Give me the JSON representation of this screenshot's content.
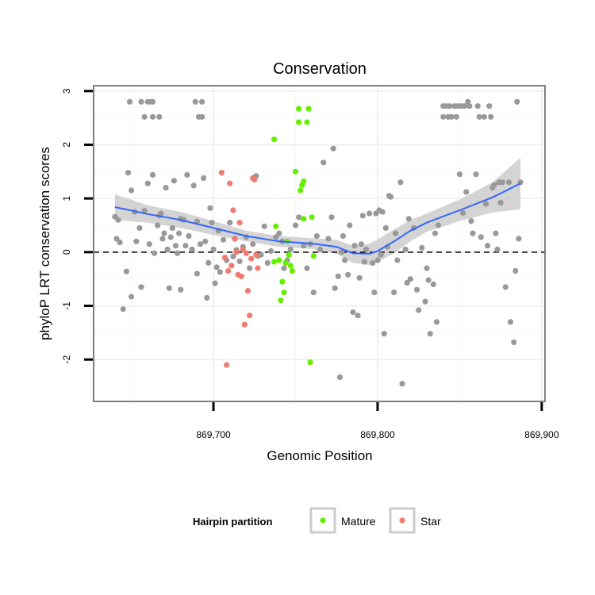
{
  "chart_data": {
    "type": "scatter",
    "title": "Conservation",
    "xlabel": "Genomic Position",
    "ylabel": "phyloP LRT conservation scores",
    "xlim": [
      869627,
      869902
    ],
    "ylim": [
      -2.78,
      3.1
    ],
    "x_ticks": [
      869700,
      869800,
      869900
    ],
    "x_tick_labels": [
      "869,700",
      "869,800",
      "869,900"
    ],
    "y_ticks": [
      -2,
      -1,
      0,
      1,
      2,
      3
    ],
    "y_tick_labels": [
      "-2",
      "-1",
      "0",
      "1",
      "2",
      "3"
    ],
    "reference_line": {
      "y": 0,
      "style": "dashed"
    },
    "grid": true,
    "legend": {
      "title": "Hairpin partition",
      "position": "bottom",
      "entries": [
        {
          "label": "Mature",
          "color": "#66ee00"
        },
        {
          "label": "Star",
          "color": "#f07b70"
        }
      ]
    },
    "colors": {
      "other": "#999999",
      "mature": "#66ee00",
      "star": "#f07b70",
      "smooth": "#3366ff",
      "band": "#cccccc"
    },
    "smooth": {
      "x": [
        869640,
        869660,
        869680,
        869700,
        869720,
        869740,
        869760,
        869775,
        869785,
        869795,
        869800,
        869810,
        869820,
        869830,
        869850,
        869870,
        869887
      ],
      "y": [
        0.84,
        0.71,
        0.6,
        0.45,
        0.3,
        0.2,
        0.16,
        0.1,
        -0.02,
        -0.03,
        0.02,
        0.2,
        0.4,
        0.55,
        0.78,
        1.02,
        1.28
      ],
      "lower": [
        0.6,
        0.55,
        0.45,
        0.32,
        0.2,
        0.1,
        0.06,
        -0.03,
        -0.2,
        -0.24,
        -0.18,
        -0.02,
        0.2,
        0.38,
        0.58,
        0.74,
        0.8
      ],
      "upper": [
        1.08,
        0.87,
        0.75,
        0.58,
        0.4,
        0.3,
        0.26,
        0.23,
        0.12,
        0.16,
        0.24,
        0.42,
        0.6,
        0.72,
        0.98,
        1.3,
        1.76
      ]
    },
    "series": [
      {
        "name": "Other",
        "points": [
          [
            869649,
            2.8
          ],
          [
            869656,
            2.8
          ],
          [
            869658,
            2.52
          ],
          [
            869660,
            2.8
          ],
          [
            869662,
            2.8
          ],
          [
            869663,
            2.52
          ],
          [
            869663,
            2.8
          ],
          [
            869667,
            2.52
          ],
          [
            869689,
            2.8
          ],
          [
            869691,
            2.52
          ],
          [
            869693,
            2.8
          ],
          [
            869693,
            2.52
          ],
          [
            869640,
            0.66
          ],
          [
            869641,
            0.25
          ],
          [
            869642,
            0.6
          ],
          [
            869643,
            0.18
          ],
          [
            869645,
            -1.06
          ],
          [
            869647,
            -0.36
          ],
          [
            869650,
            -0.83
          ],
          [
            869648,
            1.48
          ],
          [
            869650,
            1.15
          ],
          [
            869652,
            0.75
          ],
          [
            869653,
            0.2
          ],
          [
            869655,
            0.45
          ],
          [
            869656,
            -0.65
          ],
          [
            869658,
            0.77
          ],
          [
            869660,
            1.28
          ],
          [
            869661,
            0.15
          ],
          [
            869663,
            1.44
          ],
          [
            869664,
            -0.02
          ],
          [
            869666,
            0.5
          ],
          [
            869667,
            0.68
          ],
          [
            869668,
            0.72
          ],
          [
            869669,
            0.25
          ],
          [
            869670,
            0.35
          ],
          [
            869671,
            1.2
          ],
          [
            869672,
            0.05
          ],
          [
            869673,
            -0.67
          ],
          [
            869674,
            0.28
          ],
          [
            869675,
            0.45
          ],
          [
            869676,
            1.33
          ],
          [
            869677,
            0.12
          ],
          [
            869678,
            -0.02
          ],
          [
            869679,
            0.35
          ],
          [
            869680,
            -0.7
          ],
          [
            869680,
            0.62
          ],
          [
            869682,
            0.6
          ],
          [
            869683,
            0.12
          ],
          [
            869684,
            1.44
          ],
          [
            869685,
            0.3
          ],
          [
            869687,
            0.05
          ],
          [
            869688,
            1.24
          ],
          [
            869690,
            -0.4
          ],
          [
            869690,
            0.57
          ],
          [
            869692,
            0.15
          ],
          [
            869694,
            1.38
          ],
          [
            869695,
            0.2
          ],
          [
            869696,
            -0.85
          ],
          [
            869697,
            -0.2
          ],
          [
            869698,
            0.82
          ],
          [
            869699,
            0.55
          ],
          [
            869700,
            0.05
          ],
          [
            869701,
            -0.58
          ],
          [
            869702,
            -0.28
          ],
          [
            869703,
            0.4
          ],
          [
            869704,
            -0.37
          ],
          [
            869706,
            0.23
          ],
          [
            869708,
            -0.15
          ],
          [
            869710,
            0.55
          ],
          [
            869712,
            -0.08
          ],
          [
            869714,
            0.04
          ],
          [
            869716,
            -0.17
          ],
          [
            869718,
            0.1
          ],
          [
            869720,
            0.28
          ],
          [
            869722,
            -0.3
          ],
          [
            869724,
            0.15
          ],
          [
            869726,
            1.42
          ],
          [
            869727,
            -0.07
          ],
          [
            869729,
            -0.05
          ],
          [
            869731,
            0.48
          ],
          [
            869733,
            -0.2
          ],
          [
            869735,
            0.02
          ],
          [
            869738,
            0.28
          ],
          [
            869740,
            0.35
          ],
          [
            869742,
            0.2
          ],
          [
            869743,
            -0.3
          ],
          [
            869745,
            -0.15
          ],
          [
            869747,
            0.05
          ],
          [
            869750,
            0.5
          ],
          [
            869752,
            0.65
          ],
          [
            869755,
            0.12
          ],
          [
            869757,
            -0.3
          ],
          [
            869759,
            0.15
          ],
          [
            869761,
            -0.75
          ],
          [
            869763,
            0.3
          ],
          [
            869765,
            0.05
          ],
          [
            869767,
            1.67
          ],
          [
            869770,
            0.25
          ],
          [
            869772,
            0.65
          ],
          [
            869773,
            1.93
          ],
          [
            869774,
            -0.67
          ],
          [
            869776,
            -0.45
          ],
          [
            869777,
            -2.33
          ],
          [
            869778,
            0.0
          ],
          [
            869779,
            0.3
          ],
          [
            869780,
            -0.15
          ],
          [
            869782,
            -0.42
          ],
          [
            869783,
            0.5
          ],
          [
            869785,
            -1.12
          ],
          [
            869786,
            0.12
          ],
          [
            869788,
            -1.18
          ],
          [
            869789,
            -0.48
          ],
          [
            869790,
            0.15
          ],
          [
            869791,
            0.68
          ],
          [
            869792,
            -0.18
          ],
          [
            869793,
            0.05
          ],
          [
            869795,
            0.72
          ],
          [
            869797,
            -0.2
          ],
          [
            869798,
            -0.75
          ],
          [
            869799,
            0.72
          ],
          [
            869800,
            -0.15
          ],
          [
            869801,
            0.78
          ],
          [
            869802,
            -0.05
          ],
          [
            869803,
            0.75
          ],
          [
            869804,
            -1.52
          ],
          [
            869805,
            0.45
          ],
          [
            869806,
            0.1
          ],
          [
            869807,
            1.05
          ],
          [
            869808,
            1.03
          ],
          [
            869810,
            -0.75
          ],
          [
            869811,
            0.35
          ],
          [
            869812,
            -0.15
          ],
          [
            869814,
            1.3
          ],
          [
            869815,
            -2.45
          ],
          [
            869817,
            0.05
          ],
          [
            869818,
            -0.57
          ],
          [
            869819,
            0.62
          ],
          [
            869820,
            -0.5
          ],
          [
            869822,
            0.45
          ],
          [
            869824,
            -0.7
          ],
          [
            869825,
            -1.08
          ],
          [
            869827,
            0.08
          ],
          [
            869829,
            -0.92
          ],
          [
            869830,
            -0.3
          ],
          [
            869831,
            -0.52
          ],
          [
            869832,
            -1.52
          ],
          [
            869834,
            -0.6
          ],
          [
            869835,
            0.35
          ],
          [
            869836,
            -1.3
          ],
          [
            869837,
            0.5
          ],
          [
            869840,
            2.52
          ],
          [
            869840,
            2.72
          ],
          [
            869842,
            2.72
          ],
          [
            869843,
            2.52
          ],
          [
            869844,
            2.72
          ],
          [
            869845,
            2.52
          ],
          [
            869847,
            2.72
          ],
          [
            869848,
            2.52
          ],
          [
            869849,
            2.72
          ],
          [
            869850,
            1.45
          ],
          [
            869851,
            2.72
          ],
          [
            869852,
            0.73
          ],
          [
            869853,
            2.72
          ],
          [
            869854,
            1.12
          ],
          [
            869855,
            2.8
          ],
          [
            869856,
            2.72
          ],
          [
            869857,
            0.58
          ],
          [
            869858,
            0.35
          ],
          [
            869860,
            1.45
          ],
          [
            869861,
            2.72
          ],
          [
            869862,
            2.52
          ],
          [
            869863,
            0.28
          ],
          [
            869865,
            2.52
          ],
          [
            869866,
            0.9
          ],
          [
            869867,
            0.12
          ],
          [
            869868,
            2.72
          ],
          [
            869869,
            2.52
          ],
          [
            869870,
            1.2
          ],
          [
            869871,
            1.25
          ],
          [
            869872,
            0.35
          ],
          [
            869873,
            0.05
          ],
          [
            869874,
            1.3
          ],
          [
            869875,
            0.92
          ],
          [
            869876,
            1.3
          ],
          [
            869878,
            -0.65
          ],
          [
            869880,
            1.3
          ],
          [
            869881,
            -1.3
          ],
          [
            869883,
            -1.68
          ],
          [
            869884,
            -0.35
          ],
          [
            869885,
            2.8
          ],
          [
            869886,
            0.25
          ],
          [
            869887,
            1.3
          ]
        ]
      },
      {
        "name": "Mature",
        "points": [
          [
            869737,
            2.1
          ],
          [
            869738,
            0.48
          ],
          [
            869740,
            -0.15
          ],
          [
            869741,
            -0.9
          ],
          [
            869742,
            -0.55
          ],
          [
            869743,
            -0.75
          ],
          [
            869745,
            0.2
          ],
          [
            869746,
            -0.05
          ],
          [
            869747,
            -0.25
          ],
          [
            869748,
            -0.35
          ],
          [
            869750,
            1.5
          ],
          [
            869752,
            2.67
          ],
          [
            869752,
            2.42
          ],
          [
            869753,
            1.15
          ],
          [
            869754,
            1.25
          ],
          [
            869755,
            1.32
          ],
          [
            869755,
            0.62
          ],
          [
            869757,
            2.42
          ],
          [
            869758,
            2.67
          ],
          [
            869759,
            -2.05
          ],
          [
            869760,
            0.65
          ],
          [
            869761,
            -0.07
          ],
          [
            869737,
            -0.18
          ],
          [
            869744,
            -0.2
          ]
        ]
      },
      {
        "name": "Star",
        "points": [
          [
            869705,
            1.48
          ],
          [
            869707,
            -0.1
          ],
          [
            869708,
            -2.1
          ],
          [
            869709,
            -0.35
          ],
          [
            869710,
            1.28
          ],
          [
            869711,
            -0.25
          ],
          [
            869712,
            0.78
          ],
          [
            869713,
            0.25
          ],
          [
            869714,
            0.0
          ],
          [
            869715,
            -0.42
          ],
          [
            869716,
            0.55
          ],
          [
            869717,
            -0.45
          ],
          [
            869718,
            0.05
          ],
          [
            869719,
            -1.35
          ],
          [
            869720,
            -0.02
          ],
          [
            869721,
            -0.72
          ],
          [
            869722,
            -1.18
          ],
          [
            869723,
            -0.12
          ],
          [
            869724,
            1.38
          ],
          [
            869725,
            1.35
          ],
          [
            869726,
            -0.05
          ],
          [
            869727,
            -0.3
          ]
        ]
      }
    ]
  }
}
